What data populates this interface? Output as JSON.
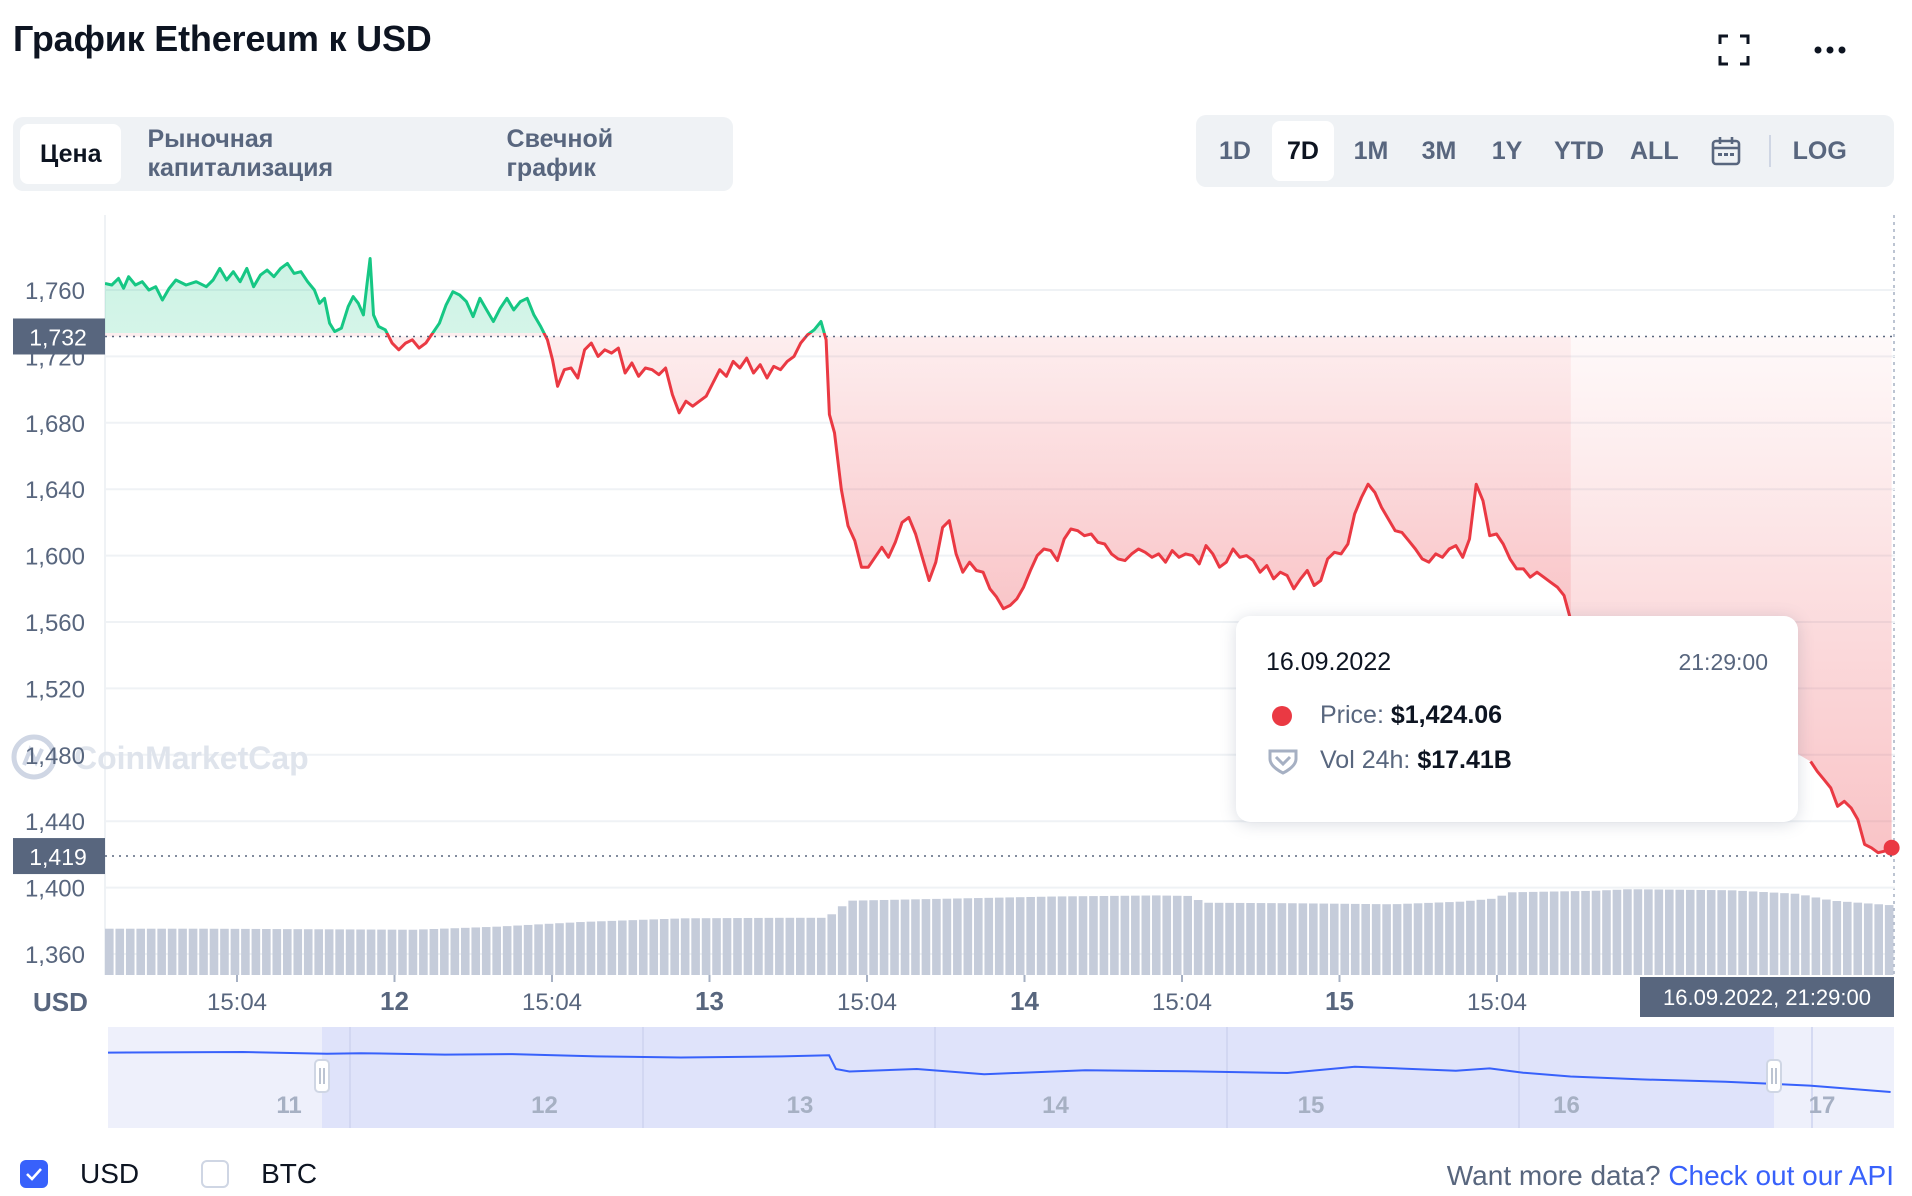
{
  "title": "График Ethereum к USD",
  "tabs_left": [
    {
      "label": "Цена",
      "active": true
    },
    {
      "label": "Рыночная капитализация",
      "active": false
    },
    {
      "label": "Свечной график",
      "active": false
    }
  ],
  "tabs_right": [
    {
      "label": "1D",
      "active": false
    },
    {
      "label": "7D",
      "active": true
    },
    {
      "label": "1M",
      "active": false
    },
    {
      "label": "3M",
      "active": false
    },
    {
      "label": "1Y",
      "active": false
    },
    {
      "label": "YTD",
      "active": false
    },
    {
      "label": "ALL",
      "active": false
    }
  ],
  "log_label": "LOG",
  "icons": {
    "calendar": "calendar-icon",
    "fullscreen": "fullscreen-icon",
    "more": "more-icon"
  },
  "watermark": "CoinMarketCap",
  "colors": {
    "up": "#16c784",
    "down": "#ea3943",
    "volume": "#c5ccda",
    "accent": "#3861fb"
  },
  "chart_data": {
    "type": "line",
    "currency_label": "USD",
    "y_ticks": [
      "1,760",
      "1,720",
      "1,680",
      "1,640",
      "1,600",
      "1,560",
      "1,520",
      "1,480",
      "1,440",
      "1,400",
      "1,360"
    ],
    "x_ticks": [
      "15:04",
      "12",
      "15:04",
      "13",
      "15:04",
      "14",
      "15:04",
      "15",
      "15:04"
    ],
    "reference_price": "1,732",
    "current_price": "1,419",
    "crosshair_label": "16.09.2022, 21:29:00",
    "navigator_labels": [
      "11",
      "12",
      "13",
      "14",
      "15",
      "16",
      "17"
    ],
    "price_series": [
      [
        0,
        1764
      ],
      [
        4,
        1763
      ],
      [
        8,
        1767
      ],
      [
        11,
        1761
      ],
      [
        14,
        1768
      ],
      [
        18,
        1763
      ],
      [
        22,
        1765
      ],
      [
        26,
        1760
      ],
      [
        30,
        1762
      ],
      [
        34,
        1754
      ],
      [
        38,
        1761
      ],
      [
        42,
        1766
      ],
      [
        48,
        1763
      ],
      [
        54,
        1765
      ],
      [
        60,
        1762
      ],
      [
        64,
        1766
      ],
      [
        68,
        1773
      ],
      [
        72,
        1766
      ],
      [
        76,
        1771
      ],
      [
        80,
        1765
      ],
      [
        84,
        1773
      ],
      [
        88,
        1762
      ],
      [
        92,
        1769
      ],
      [
        96,
        1772
      ],
      [
        100,
        1768
      ],
      [
        104,
        1773
      ],
      [
        108,
        1776
      ],
      [
        112,
        1770
      ],
      [
        116,
        1771
      ],
      [
        120,
        1765
      ],
      [
        124,
        1760
      ],
      [
        127,
        1752
      ],
      [
        130,
        1755
      ],
      [
        133,
        1740
      ],
      [
        136,
        1735
      ],
      [
        140,
        1737
      ],
      [
        144,
        1750
      ],
      [
        147,
        1756
      ],
      [
        150,
        1752
      ],
      [
        153,
        1745
      ],
      [
        155,
        1762
      ],
      [
        157,
        1779
      ],
      [
        159,
        1745
      ],
      [
        162,
        1738
      ],
      [
        166,
        1736
      ],
      [
        170,
        1728
      ],
      [
        174,
        1724
      ],
      [
        178,
        1728
      ],
      [
        182,
        1730
      ],
      [
        186,
        1725
      ],
      [
        190,
        1728
      ],
      [
        194,
        1734
      ],
      [
        198,
        1740
      ],
      [
        202,
        1751
      ],
      [
        206,
        1759
      ],
      [
        210,
        1757
      ],
      [
        214,
        1753
      ],
      [
        218,
        1744
      ],
      [
        222,
        1755
      ],
      [
        226,
        1748
      ],
      [
        230,
        1741
      ],
      [
        234,
        1749
      ],
      [
        238,
        1755
      ],
      [
        242,
        1748
      ],
      [
        246,
        1753
      ],
      [
        250,
        1755
      ],
      [
        254,
        1745
      ],
      [
        258,
        1738
      ],
      [
        262,
        1730
      ],
      [
        265,
        1718
      ],
      [
        268,
        1702
      ],
      [
        272,
        1712
      ],
      [
        276,
        1713
      ],
      [
        280,
        1707
      ],
      [
        284,
        1724
      ],
      [
        288,
        1728
      ],
      [
        292,
        1720
      ],
      [
        296,
        1724
      ],
      [
        300,
        1722
      ],
      [
        304,
        1725
      ],
      [
        308,
        1710
      ],
      [
        312,
        1716
      ],
      [
        316,
        1708
      ],
      [
        320,
        1713
      ],
      [
        324,
        1712
      ],
      [
        328,
        1709
      ],
      [
        332,
        1713
      ],
      [
        336,
        1697
      ],
      [
        340,
        1686
      ],
      [
        344,
        1693
      ],
      [
        348,
        1690
      ],
      [
        352,
        1693
      ],
      [
        356,
        1696
      ],
      [
        360,
        1704
      ],
      [
        364,
        1712
      ],
      [
        368,
        1708
      ],
      [
        372,
        1717
      ],
      [
        376,
        1713
      ],
      [
        380,
        1719
      ],
      [
        384,
        1710
      ],
      [
        388,
        1715
      ],
      [
        392,
        1707
      ],
      [
        396,
        1714
      ],
      [
        400,
        1712
      ],
      [
        404,
        1717
      ],
      [
        408,
        1720
      ],
      [
        412,
        1728
      ],
      [
        416,
        1733
      ],
      [
        420,
        1736
      ],
      [
        424,
        1741
      ],
      [
        427,
        1730
      ],
      [
        429,
        1685
      ],
      [
        432,
        1674
      ],
      [
        436,
        1640
      ],
      [
        440,
        1618
      ],
      [
        444,
        1609
      ],
      [
        448,
        1593
      ],
      [
        452,
        1593
      ],
      [
        456,
        1599
      ],
      [
        460,
        1605
      ],
      [
        464,
        1599
      ],
      [
        468,
        1608
      ],
      [
        472,
        1620
      ],
      [
        476,
        1623
      ],
      [
        480,
        1613
      ],
      [
        484,
        1599
      ],
      [
        488,
        1585
      ],
      [
        492,
        1596
      ],
      [
        496,
        1617
      ],
      [
        500,
        1621
      ],
      [
        504,
        1601
      ],
      [
        508,
        1590
      ],
      [
        512,
        1596
      ],
      [
        516,
        1591
      ],
      [
        520,
        1590
      ],
      [
        524,
        1580
      ],
      [
        528,
        1575
      ],
      [
        532,
        1568
      ],
      [
        536,
        1570
      ],
      [
        540,
        1574
      ],
      [
        544,
        1581
      ],
      [
        548,
        1591
      ],
      [
        552,
        1600
      ],
      [
        556,
        1604
      ],
      [
        560,
        1603
      ],
      [
        564,
        1597
      ],
      [
        568,
        1610
      ],
      [
        572,
        1616
      ],
      [
        576,
        1615
      ],
      [
        580,
        1612
      ],
      [
        584,
        1613
      ],
      [
        588,
        1608
      ],
      [
        592,
        1607
      ],
      [
        596,
        1601
      ],
      [
        600,
        1598
      ],
      [
        604,
        1597
      ],
      [
        608,
        1601
      ],
      [
        612,
        1604
      ],
      [
        616,
        1602
      ],
      [
        620,
        1599
      ],
      [
        624,
        1601
      ],
      [
        628,
        1596
      ],
      [
        632,
        1603
      ],
      [
        636,
        1599
      ],
      [
        640,
        1601
      ],
      [
        644,
        1600
      ],
      [
        648,
        1595
      ],
      [
        652,
        1606
      ],
      [
        656,
        1601
      ],
      [
        660,
        1593
      ],
      [
        664,
        1596
      ],
      [
        668,
        1604
      ],
      [
        672,
        1599
      ],
      [
        676,
        1600
      ],
      [
        680,
        1597
      ],
      [
        684,
        1590
      ],
      [
        688,
        1594
      ],
      [
        692,
        1586
      ],
      [
        696,
        1590
      ],
      [
        700,
        1588
      ],
      [
        704,
        1580
      ],
      [
        708,
        1586
      ],
      [
        712,
        1591
      ],
      [
        716,
        1582
      ],
      [
        720,
        1585
      ],
      [
        724,
        1598
      ],
      [
        728,
        1602
      ],
      [
        732,
        1601
      ],
      [
        736,
        1607
      ],
      [
        740,
        1625
      ],
      [
        744,
        1635
      ],
      [
        748,
        1643
      ],
      [
        752,
        1638
      ],
      [
        756,
        1629
      ],
      [
        760,
        1622
      ],
      [
        764,
        1615
      ],
      [
        768,
        1614
      ],
      [
        772,
        1609
      ],
      [
        776,
        1604
      ],
      [
        780,
        1598
      ],
      [
        784,
        1596
      ],
      [
        788,
        1601
      ],
      [
        792,
        1599
      ],
      [
        796,
        1604
      ],
      [
        800,
        1606
      ],
      [
        804,
        1599
      ],
      [
        808,
        1610
      ],
      [
        812,
        1643
      ],
      [
        816,
        1633
      ],
      [
        820,
        1612
      ],
      [
        824,
        1613
      ],
      [
        828,
        1607
      ],
      [
        832,
        1598
      ],
      [
        836,
        1592
      ],
      [
        840,
        1592
      ],
      [
        844,
        1587
      ],
      [
        848,
        1590
      ],
      [
        852,
        1587
      ],
      [
        856,
        1584
      ],
      [
        860,
        1581
      ],
      [
        864,
        1576
      ],
      [
        868,
        1561
      ]
    ],
    "price_series_end": [
      [
        1010,
        1476
      ],
      [
        1014,
        1470
      ],
      [
        1018,
        1465
      ],
      [
        1022,
        1460
      ],
      [
        1026,
        1449
      ],
      [
        1030,
        1452
      ],
      [
        1034,
        1448
      ],
      [
        1038,
        1441
      ],
      [
        1042,
        1426
      ],
      [
        1046,
        1424
      ],
      [
        1050,
        1421
      ],
      [
        1054,
        1422
      ],
      [
        1058,
        1424
      ]
    ],
    "volume_series_B": [
      [
        0,
        8.9
      ],
      [
        60,
        8.9
      ],
      [
        120,
        8.8
      ],
      [
        180,
        8.7
      ],
      [
        230,
        9.3
      ],
      [
        280,
        10.2
      ],
      [
        340,
        10.9
      ],
      [
        400,
        11.0
      ],
      [
        426,
        11.0
      ],
      [
        430,
        12.5
      ],
      [
        440,
        14.3
      ],
      [
        500,
        14.7
      ],
      [
        560,
        15.1
      ],
      [
        620,
        15.3
      ],
      [
        640,
        15.2
      ],
      [
        648,
        13.9
      ],
      [
        700,
        13.8
      ],
      [
        760,
        13.6
      ],
      [
        800,
        14.1
      ],
      [
        820,
        14.7
      ],
      [
        830,
        15.9
      ],
      [
        880,
        16.2
      ],
      [
        900,
        16.5
      ],
      [
        960,
        16.3
      ],
      [
        1000,
        15.6
      ],
      [
        1020,
        14.3
      ],
      [
        1040,
        13.8
      ],
      [
        1060,
        13.3
      ]
    ],
    "navigator_series": [
      [
        0,
        1763
      ],
      [
        80,
        1768
      ],
      [
        130,
        1752
      ],
      [
        150,
        1758
      ],
      [
        200,
        1745
      ],
      [
        240,
        1750
      ],
      [
        290,
        1730
      ],
      [
        340,
        1720
      ],
      [
        400,
        1730
      ],
      [
        428,
        1739
      ],
      [
        432,
        1620
      ],
      [
        440,
        1598
      ],
      [
        480,
        1620
      ],
      [
        520,
        1575
      ],
      [
        580,
        1610
      ],
      [
        640,
        1600
      ],
      [
        700,
        1585
      ],
      [
        740,
        1640
      ],
      [
        800,
        1605
      ],
      [
        820,
        1625
      ],
      [
        840,
        1588
      ],
      [
        868,
        1555
      ],
      [
        910,
        1530
      ],
      [
        960,
        1510
      ],
      [
        1010,
        1476
      ],
      [
        1058,
        1420
      ]
    ],
    "tooltip": {
      "date": "16.09.2022",
      "time": "21:29:00",
      "price_label": "Price:",
      "price_value": "$1,424.06",
      "vol_label": "Vol 24h:",
      "vol_value": "$17.41B"
    }
  },
  "footer": {
    "usd_label": "USD",
    "btc_label": "BTC",
    "usd_checked": true,
    "btc_checked": false,
    "more_data_text": "Want more data?",
    "api_link_text": "Check out our API"
  }
}
